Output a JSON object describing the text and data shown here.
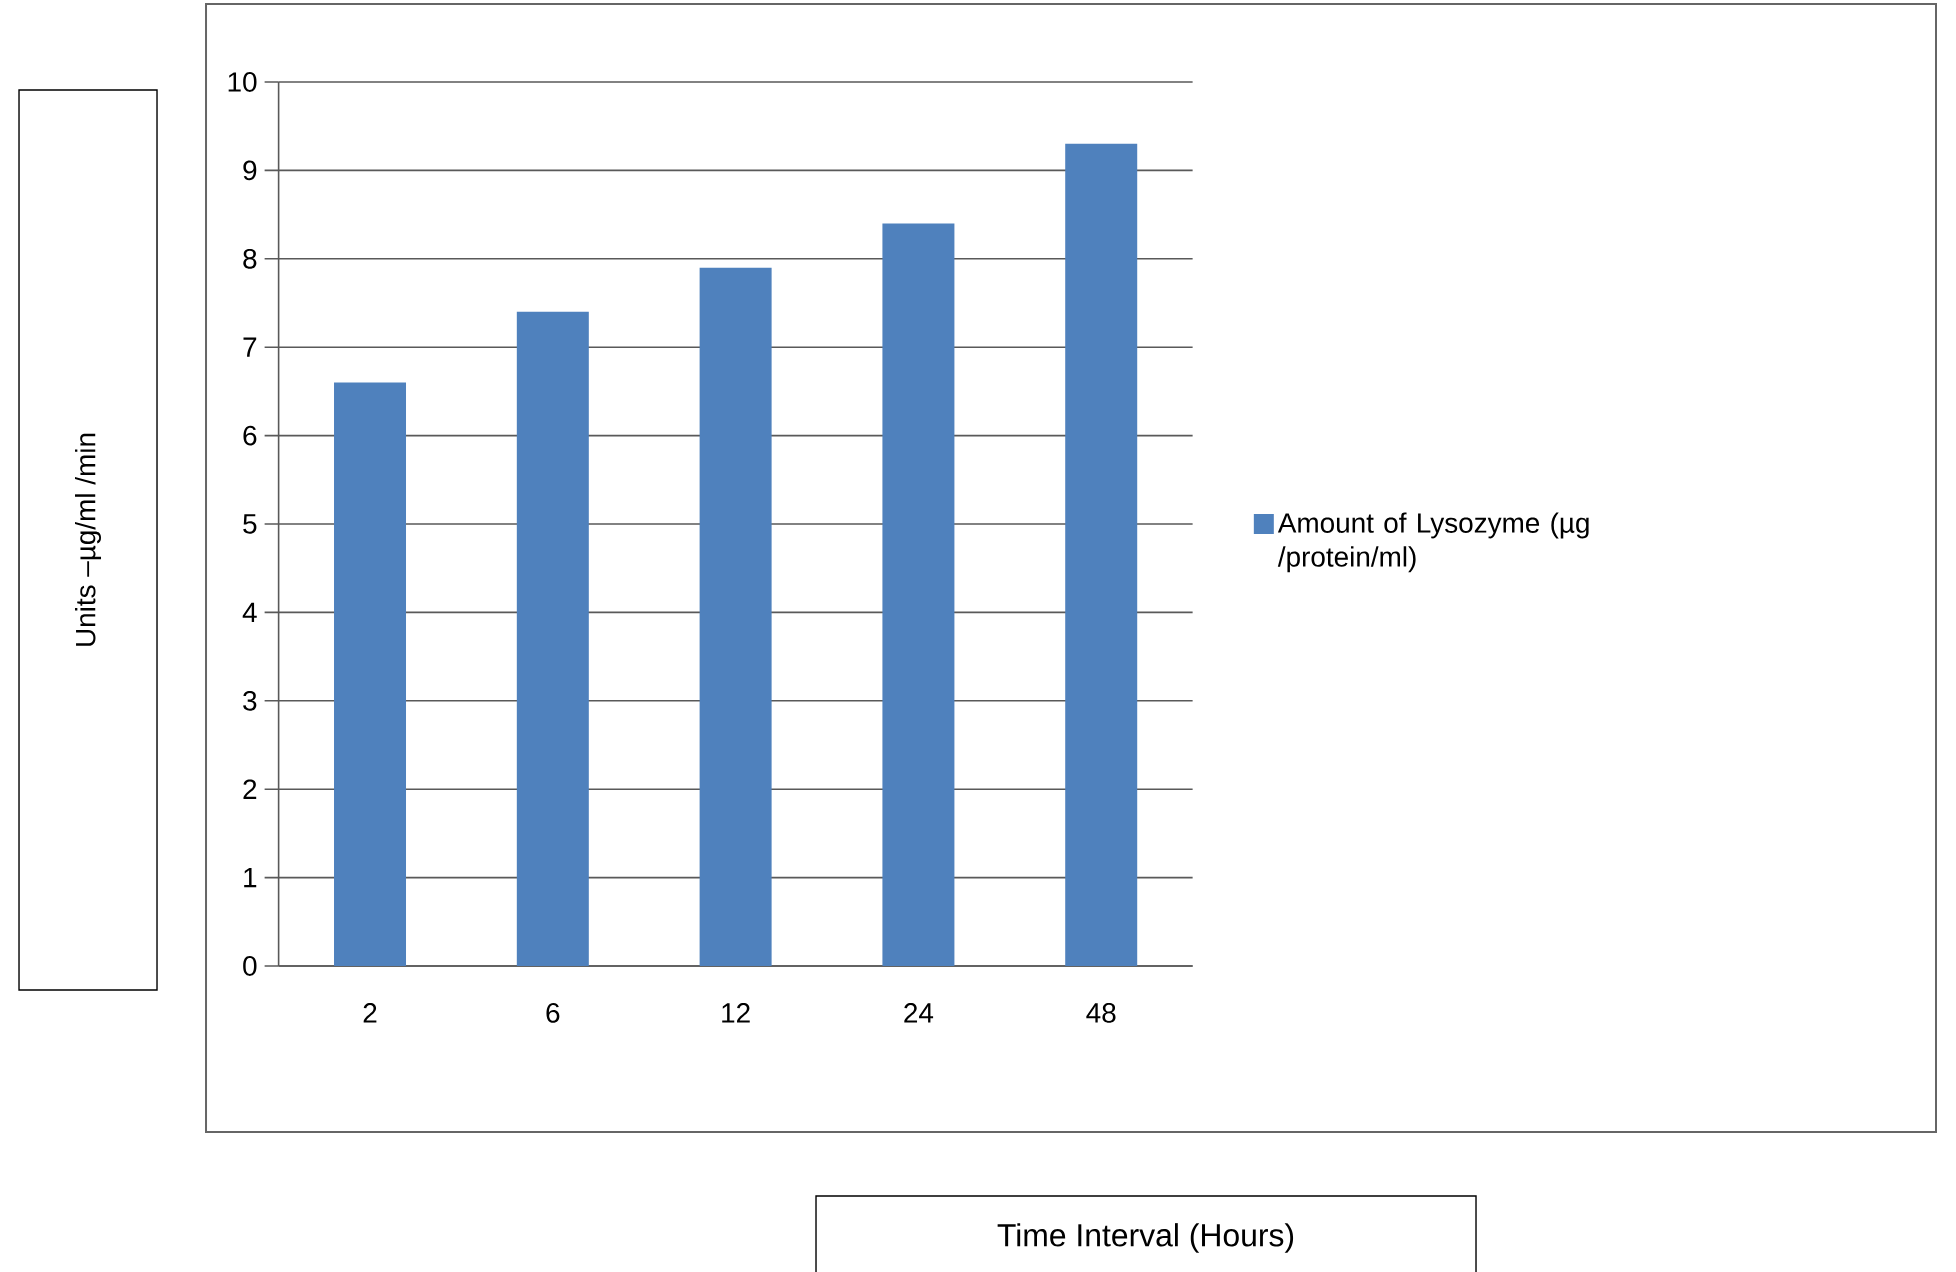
{
  "chart_data": {
    "type": "bar",
    "annotations": [
      "Time Interval (Hours)"
    ],
    "ylabel": "Units –µg/ml /min",
    "categories": [
      "2",
      "6",
      "12",
      "24",
      "48"
    ],
    "series": [
      {
        "name": "Amount of Lysozyme (µg /protein/ml)",
        "color": "#4f81bd",
        "values": [
          6.6,
          7.4,
          7.9,
          8.4,
          9.3
        ]
      }
    ],
    "ylim": [
      0,
      10
    ],
    "yticks": [
      0,
      1,
      2,
      3,
      4,
      5,
      6,
      7,
      8,
      9,
      10
    ],
    "grid": "y",
    "legend": "right"
  }
}
